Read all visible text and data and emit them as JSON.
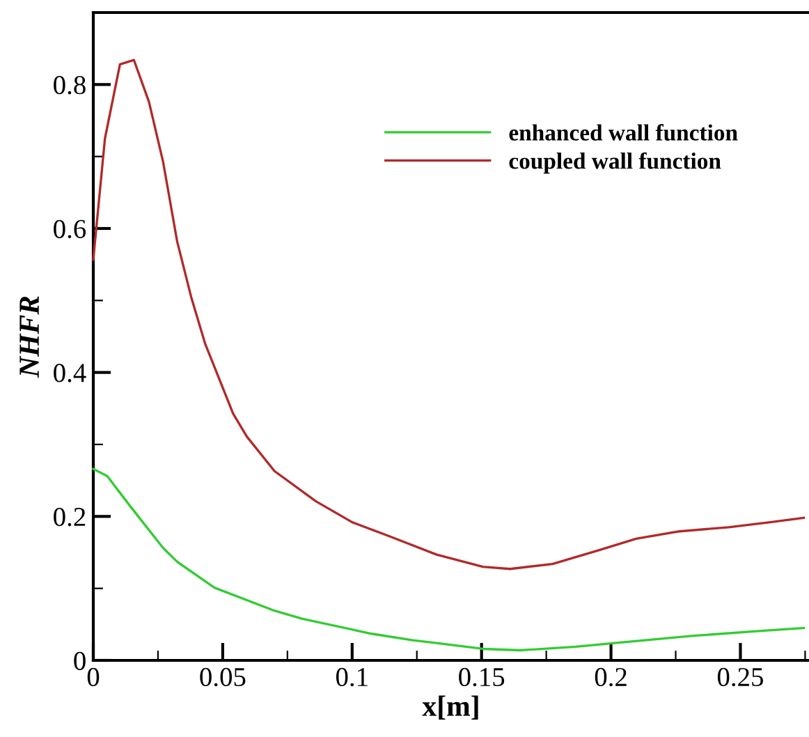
{
  "chart_data": {
    "type": "line",
    "xlabel": "x[m]",
    "ylabel": "NHFR",
    "xlim": [
      0,
      0.2765
    ],
    "ylim": [
      0,
      0.9
    ],
    "xticks": [
      0,
      0.05,
      0.1,
      0.15,
      0.2,
      0.25,
      {
        "value": 0.025,
        "label": null
      },
      {
        "value": 0.075,
        "label": null
      },
      {
        "value": 0.125,
        "label": null
      },
      {
        "value": 0.175,
        "label": null
      },
      {
        "value": 0.225,
        "label": null
      },
      {
        "value": 0.275,
        "label": null
      }
    ],
    "yticks": [
      0,
      0.2,
      0.4,
      0.6,
      0.8,
      {
        "value": 0.1,
        "label": null
      },
      {
        "value": 0.3,
        "label": null
      },
      {
        "value": 0.5,
        "label": null
      },
      {
        "value": 0.7,
        "label": null
      }
    ],
    "grid": false,
    "legend": "top right",
    "marker": "none",
    "line_style": "solid",
    "series": [
      {
        "name": "enhanced wall function",
        "color": "#33cc33",
        "x": [
          0,
          0.0054,
          0.0143,
          0.027,
          0.0324,
          0.0468,
          0.07,
          0.0806,
          0.1075,
          0.1235,
          0.1326,
          0.1505,
          0.1649,
          0.1864,
          0.2043,
          0.2312,
          0.2581,
          0.2745
        ],
        "values": [
          0.266,
          0.256,
          0.214,
          0.156,
          0.137,
          0.101,
          0.069,
          0.058,
          0.037,
          0.028,
          0.024,
          0.016,
          0.014,
          0.019,
          0.025,
          0.034,
          0.041,
          0.045
        ]
      },
      {
        "name": "coupled wall function",
        "color": "#b02a2a",
        "x": [
          0,
          0.0045,
          0.0103,
          0.0157,
          0.0215,
          0.027,
          0.0324,
          0.0378,
          0.0432,
          0.054,
          0.0593,
          0.07,
          0.086,
          0.1,
          0.1147,
          0.1326,
          0.1505,
          0.161,
          0.1774,
          0.1953,
          0.2097,
          0.2258,
          0.2455,
          0.2616,
          0.2745
        ],
        "values": [
          0.557,
          0.725,
          0.828,
          0.834,
          0.776,
          0.692,
          0.582,
          0.505,
          0.44,
          0.343,
          0.311,
          0.263,
          0.221,
          0.192,
          0.172,
          0.147,
          0.13,
          0.127,
          0.134,
          0.153,
          0.169,
          0.179,
          0.185,
          0.192,
          0.198
        ]
      }
    ]
  }
}
